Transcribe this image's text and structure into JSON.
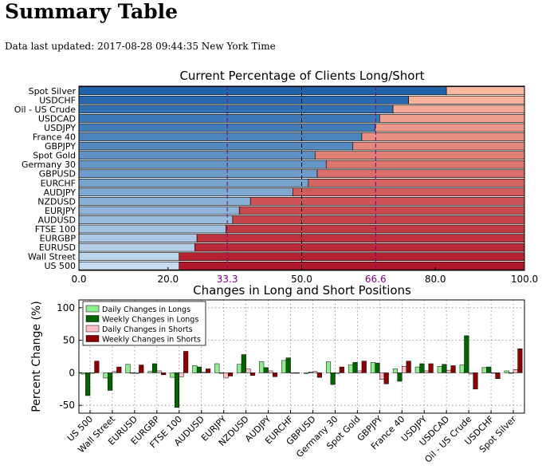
{
  "page": {
    "title": "Summary Table",
    "updated": "Data last updated: 2017-08-28 09:44:35 New York Time"
  },
  "chart_data": [
    {
      "type": "bar",
      "orientation": "horizontal",
      "stacked": true,
      "title": "Current Percentage of Clients Long/Short",
      "categories": [
        "Spot Silver",
        "USDCHF",
        "Oil - US Crude",
        "USDCAD",
        "USDJPY",
        "France 40",
        "GBPJPY",
        "Spot Gold",
        "Germany 30",
        "GBPUSD",
        "EURCHF",
        "AUDJPY",
        "NZDUSD",
        "EURJPY",
        "AUDUSD",
        "FTSE 100",
        "EURGBP",
        "EURUSD",
        "Wall Street",
        "US 500"
      ],
      "series": [
        {
          "values": [
            82.5,
            74.0,
            70.5,
            67.5,
            66.5,
            63.5,
            61.5,
            53.0,
            55.5,
            53.5,
            51.5,
            48.0,
            38.5,
            36.0,
            34.5,
            33.0,
            26.5,
            26.0,
            22.5,
            22.5
          ]
        },
        {
          "values": [
            17.5,
            26.0,
            29.5,
            32.5,
            33.5,
            36.5,
            38.5,
            47.0,
            44.5,
            46.5,
            48.5,
            52.0,
            61.5,
            64.0,
            65.5,
            67.0,
            73.5,
            74.0,
            77.5,
            77.5
          ]
        }
      ],
      "xlim": [
        0,
        100
      ],
      "xticks": [
        "0.0",
        "20.0",
        "50.0",
        "80.0",
        "100.0"
      ],
      "reference_lines": [
        {
          "value": 33.3,
          "label": "33.3",
          "color": "#800080"
        },
        {
          "value": 50.0,
          "color": "#000000"
        },
        {
          "value": 66.6,
          "label": "66.6",
          "color": "#800080"
        }
      ]
    },
    {
      "type": "bar",
      "title": "Changes in Long and Short Positions",
      "ylabel": "Percent Change (%)",
      "ylim": [
        -62,
        112
      ],
      "yticks": [
        -50,
        0,
        50,
        100
      ],
      "grid": true,
      "legend": "top-left",
      "categories": [
        "US 500",
        "Wall Street",
        "EURUSD",
        "EURGBP",
        "FTSE 100",
        "AUDUSD",
        "EURJPY",
        "NZDUSD",
        "AUDJPY",
        "EURCHF",
        "GBPUSD",
        "Germany 30",
        "Spot Gold",
        "GBPJPY",
        "France 40",
        "USDJPY",
        "USDCAD",
        "Oil - US Crude",
        "USDCHF",
        "Spot Silver"
      ],
      "series": [
        {
          "name": "Daily Changes in Longs",
          "color": "#90ee90",
          "values": [
            -2,
            -8,
            13,
            2,
            -7,
            11,
            14,
            13,
            17,
            19,
            -1,
            17,
            12,
            16,
            6,
            9,
            10,
            12,
            8,
            3
          ]
        },
        {
          "name": "Weekly Changes in Longs",
          "color": "#006400",
          "values": [
            -35,
            -27,
            0,
            14,
            -53,
            9,
            0,
            28,
            8,
            23,
            1,
            -18,
            16,
            15,
            -13,
            14,
            13,
            57,
            9,
            0
          ]
        },
        {
          "name": "Daily Changes in Shorts",
          "color": "#ffc0cb",
          "values": [
            0,
            2,
            -1,
            3,
            -6,
            1,
            -8,
            6,
            3,
            0,
            2,
            -1,
            3,
            -10,
            10,
            3,
            4,
            -2,
            0,
            5
          ]
        },
        {
          "name": "Weekly Changes in Shorts",
          "color": "#8b0000",
          "values": [
            18,
            9,
            12,
            -3,
            33,
            6,
            -5,
            -4,
            -6,
            0,
            -7,
            9,
            18,
            -17,
            18,
            14,
            11,
            -25,
            -9,
            37
          ]
        }
      ]
    }
  ]
}
